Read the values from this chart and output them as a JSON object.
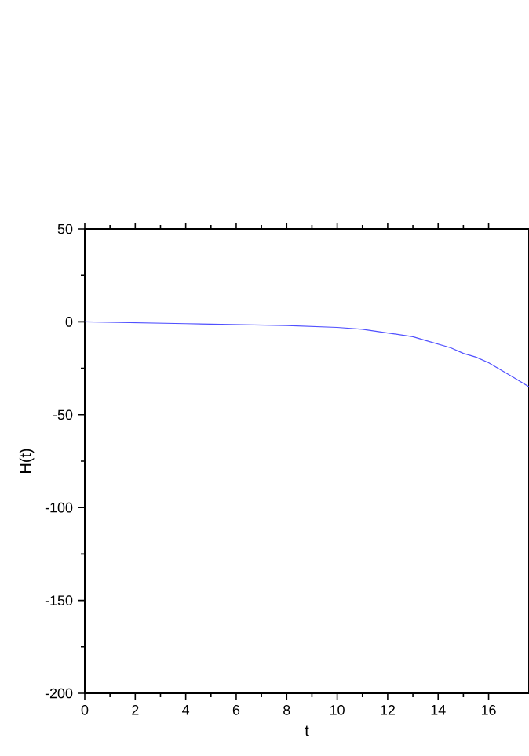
{
  "chart_data": {
    "type": "line",
    "xlabel": "t",
    "ylabel": "H(t)",
    "xlim": [
      0,
      17.6
    ],
    "ylim": [
      -200,
      50
    ],
    "xticks": [
      0,
      2,
      4,
      6,
      8,
      10,
      12,
      14,
      16
    ],
    "yticks": [
      -200,
      -150,
      -100,
      -50,
      0,
      50
    ],
    "grid": false,
    "marker": "none",
    "line_style": "solid",
    "series": [
      {
        "color": "#5050ff",
        "x": [
          0,
          4,
          8,
          10,
          11,
          12,
          12.5,
          13,
          13.5,
          14,
          14.5,
          15,
          15.5,
          16,
          16.5,
          17,
          17.6
        ],
        "values": [
          0,
          -1,
          -2,
          -3,
          -4,
          -6,
          -7,
          -8,
          -10,
          -12,
          -14,
          -17,
          -19,
          -22,
          -26,
          -30,
          -35
        ]
      }
    ]
  }
}
